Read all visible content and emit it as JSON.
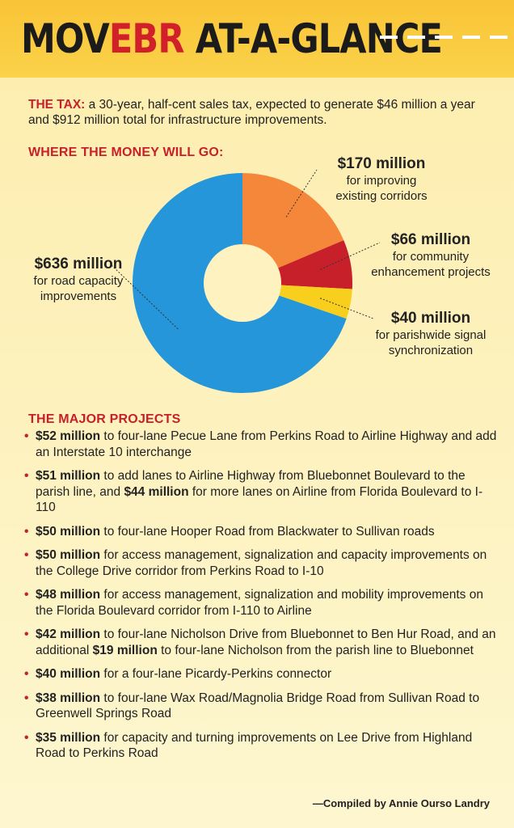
{
  "header": {
    "title_a": "MOV",
    "title_b": "EBR",
    "title_c": " AT-A-GLANCE"
  },
  "tax": {
    "label": "THE TAX:",
    "text": " a 30-year, half-cent sales tax, expected to generate $46 million a year and $912 million total for infrastructure improvements."
  },
  "money_heading": "WHERE THE MONEY WILL GO:",
  "chart_data": {
    "type": "pie",
    "donut": true,
    "slices": [
      {
        "amount": "$170 million",
        "value": 170,
        "label": "for improving\nexisting corridors",
        "color": "#f5873a"
      },
      {
        "amount": "$66 million",
        "value": 66,
        "label": "for community\nenhancement projects",
        "color": "#c8202a"
      },
      {
        "amount": "$40 million",
        "value": 40,
        "label": "for parishwide signal\nsynchronization",
        "color": "#f9cf1d"
      },
      {
        "amount": "$636 million",
        "value": 636,
        "label": "for road capacity\nimprovements",
        "color": "#2596d9"
      }
    ]
  },
  "projects_heading": "THE MAJOR PROJECTS",
  "projects": [
    [
      {
        "b": "$52 million"
      },
      {
        "t": " to four-lane Pecue Lane from Perkins Road to Airline Highway and add an Interstate 10 interchange"
      }
    ],
    [
      {
        "b": "$51 million"
      },
      {
        "t": " to add lanes to Airline Highway from Bluebonnet Boulevard to the parish line, and "
      },
      {
        "b": "$44 million"
      },
      {
        "t": " for more lanes on Airline from Florida Boulevard to I-110"
      }
    ],
    [
      {
        "b": "$50 million"
      },
      {
        "t": " to four-lane Hooper Road from Blackwater to Sullivan roads"
      }
    ],
    [
      {
        "b": "$50 million"
      },
      {
        "t": " for access management, signalization and capacity improvements on the College Drive corridor from Perkins Road to I-10"
      }
    ],
    [
      {
        "b": "$48 million"
      },
      {
        "t": " for access management, signalization and mobility improvements on the Florida Boulevard corridor from I-110 to Airline"
      }
    ],
    [
      {
        "b": "$42 million"
      },
      {
        "t": " to four-lane Nicholson Drive from Bluebonnet to Ben Hur Road, and an additional "
      },
      {
        "b": "$19 million"
      },
      {
        "t": " to four-lane Nicholson from the parish line to Bluebonnet"
      }
    ],
    [
      {
        "b": "$40 million"
      },
      {
        "t": " for a four-lane Picardy-Perkins connector"
      }
    ],
    [
      {
        "b": "$38 million"
      },
      {
        "t": " to four-lane Wax Road/Magnolia Bridge Road from Sullivan Road to Greenwell Springs Road"
      }
    ],
    [
      {
        "b": "$35 million"
      },
      {
        "t": " for capacity and turning improvements on Lee Drive from Highland Road to Perkins Road"
      }
    ]
  ],
  "credit": "—Compiled by Annie Ourso Landry"
}
